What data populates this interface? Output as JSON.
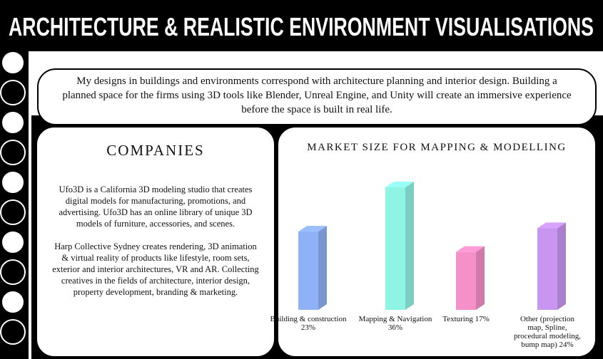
{
  "header": {
    "title": "ARCHITECTURE & REALISTIC ENVIRONMENT VISUALISATIONS"
  },
  "intro": {
    "text": "My designs in buildings and environments correspond with architecture planning and interior design. Building a planned space for the firms using 3D tools like Blender, Unreal Engine, and Unity will create an immersive experience before the space is built in real life."
  },
  "companies": {
    "heading": "COMPANIES",
    "paragraphs": [
      "Ufo3D is a California 3D modeling studio that creates digital models for manufacturing, promotions, and advertising. Ufo3D has an online library of unique 3D models of furniture, accessories, and scenes.",
      "Harp Collective Sydney creates rendering, 3D animation & virtual reality of products like lifestyle, room sets, exterior and interior architectures, VR and AR. Collecting creatives in the fields of architecture, interior design, property development, branding & marketing."
    ]
  },
  "chart_data": {
    "type": "bar",
    "title": "MARKET SIZE FOR MAPPING & MODELLING",
    "categories": [
      "Building & construction 23%",
      "Mapping & Navigation 36%",
      "Texturing 17%",
      "Other (projection map, Spline, procedural modeling, bump map) 24%"
    ],
    "values": [
      23,
      36,
      17,
      24
    ],
    "colors": [
      "#8fb1f6",
      "#8ff4e4",
      "#f590c8",
      "#c896f0"
    ]
  }
}
